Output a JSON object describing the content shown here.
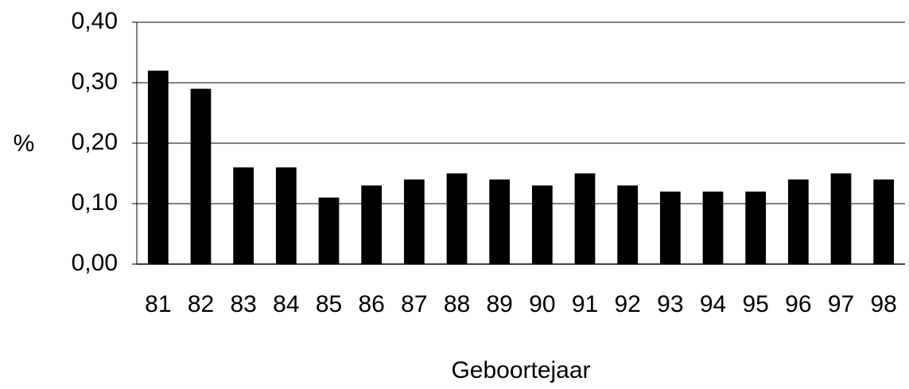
{
  "chart_data": {
    "type": "bar",
    "categories": [
      "81",
      "82",
      "83",
      "84",
      "85",
      "86",
      "87",
      "88",
      "89",
      "90",
      "91",
      "92",
      "93",
      "94",
      "95",
      "96",
      "97",
      "98"
    ],
    "values": [
      0.32,
      0.29,
      0.16,
      0.16,
      0.11,
      0.13,
      0.14,
      0.15,
      0.14,
      0.13,
      0.15,
      0.13,
      0.12,
      0.12,
      0.12,
      0.14,
      0.15,
      0.14
    ],
    "color": "#000000",
    "ylim": [
      0,
      0.4
    ],
    "yticks": [
      {
        "value": 0,
        "label": "0,00"
      },
      {
        "value": 0.1,
        "label": "0,10"
      },
      {
        "value": 0.2,
        "label": "0,20"
      },
      {
        "value": 0.3,
        "label": "0,30"
      },
      {
        "value": 0.4,
        "label": "0,40"
      }
    ],
    "y_label": "%",
    "x_label": "Geboortejaar",
    "grid": true
  }
}
